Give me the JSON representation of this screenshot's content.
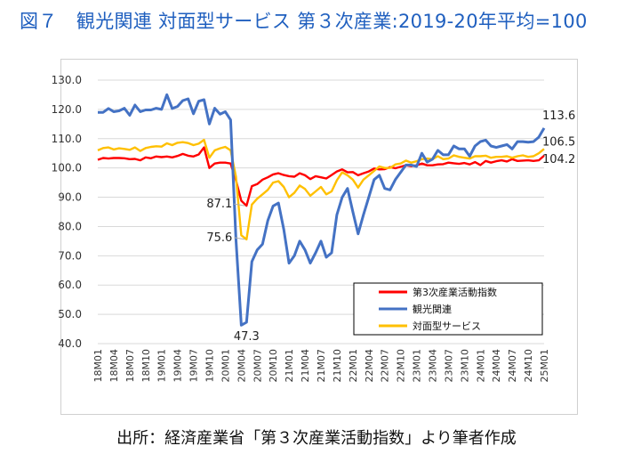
{
  "title": "図７　観光関連 対面型サービス 第３次産業:2019-20年平均=100",
  "source": "出所：経済産業省「第３次産業活動指数」より筆者作成",
  "chart_data": {
    "type": "line",
    "ylim": [
      40,
      130
    ],
    "yticks": [
      "130.0",
      "120.0",
      "110.0",
      "100.0",
      "90.0",
      "80.0",
      "70.0",
      "60.0",
      "50.0",
      "40.0"
    ],
    "ytick_values": [
      130,
      120,
      110,
      100,
      90,
      80,
      70,
      60,
      50,
      40
    ],
    "xtick_labels": [
      "18M01",
      "18M04",
      "18M07",
      "18M10",
      "19M01",
      "19M04",
      "19M07",
      "19M10",
      "20M01",
      "20M04",
      "20M07",
      "20M10",
      "21M01",
      "21M04",
      "21M07",
      "21M10",
      "22M01",
      "22M04",
      "22M07",
      "22M10",
      "23M01",
      "23M04",
      "23M07",
      "23M10",
      "24M01",
      "24M04",
      "24M07",
      "24M10",
      "25M01"
    ],
    "grid": true,
    "legend_position": "lower-right",
    "series": [
      {
        "name": "第3次産業活動指数",
        "color": "#ff0000",
        "values": [
          102.8,
          103.4,
          103.2,
          103.4,
          103.4,
          103.3,
          103.0,
          103.1,
          102.6,
          103.6,
          103.3,
          103.9,
          103.7,
          103.9,
          103.6,
          104.1,
          104.8,
          104.2,
          103.9,
          104.6,
          107.0,
          100.0,
          101.5,
          101.8,
          101.8,
          101.5,
          95.8,
          88.8,
          87.1,
          93.8,
          94.5,
          96.0,
          96.8,
          97.8,
          98.2,
          97.6,
          97.2,
          97.0,
          98.2,
          97.5,
          96.2,
          97.2,
          96.8,
          96.4,
          97.6,
          98.8,
          99.5,
          98.5,
          98.6,
          97.5,
          98.2,
          98.8,
          99.8,
          99.5,
          99.6,
          100.3,
          99.9,
          100.4,
          100.9,
          100.6,
          100.9,
          101.5,
          100.9,
          100.9,
          101.2,
          101.3,
          101.8,
          101.6,
          101.4,
          101.7,
          101.2,
          102.0,
          101.0,
          102.4,
          101.8,
          102.3,
          102.6,
          102.2,
          103.0,
          102.4,
          102.5,
          102.6,
          102.4,
          102.6,
          104.2
        ]
      },
      {
        "name": "観光関連",
        "color": "#4472c4",
        "values": [
          119.0,
          119.0,
          120.3,
          119.2,
          119.5,
          120.4,
          118.0,
          121.5,
          119.2,
          119.8,
          119.8,
          120.4,
          120.0,
          125.0,
          120.3,
          121.0,
          123.0,
          123.6,
          118.5,
          122.8,
          123.3,
          115.0,
          120.4,
          118.4,
          119.2,
          116.4,
          75.6,
          46.3,
          47.3,
          68.0,
          72.0,
          74.0,
          82.0,
          87.0,
          88.0,
          79.0,
          67.5,
          70.0,
          75.0,
          72.0,
          67.5,
          71.0,
          75.0,
          69.5,
          71.0,
          84.0,
          90.0,
          93.0,
          85.0,
          77.5,
          84.0,
          90.0,
          96.0,
          97.5,
          93.0,
          92.5,
          96.0,
          98.5,
          101.0,
          101.0,
          100.5,
          105.0,
          102.0,
          103.0,
          106.0,
          104.5,
          104.5,
          107.5,
          106.5,
          106.5,
          104.0,
          107.5,
          109.0,
          109.5,
          107.5,
          107.0,
          107.5,
          108.0,
          106.5,
          109.0,
          109.0,
          108.8,
          109.0,
          110.5,
          113.6
        ]
      },
      {
        "name": "対面型サービス",
        "color": "#ffc000",
        "values": [
          106.0,
          106.8,
          107.0,
          106.3,
          106.7,
          106.5,
          106.2,
          107.0,
          105.8,
          106.8,
          107.2,
          107.4,
          107.3,
          108.4,
          107.8,
          108.6,
          108.8,
          108.5,
          107.8,
          108.3,
          109.6,
          103.5,
          106.0,
          106.7,
          107.2,
          106.0,
          97.0,
          77.0,
          75.6,
          87.5,
          89.5,
          91.0,
          92.5,
          95.0,
          95.5,
          93.5,
          90.0,
          91.5,
          94.0,
          92.8,
          90.5,
          92.0,
          93.5,
          91.0,
          92.0,
          95.8,
          98.5,
          97.5,
          96.0,
          93.3,
          96.0,
          97.5,
          99.0,
          100.5,
          100.0,
          100.0,
          101.2,
          101.5,
          102.5,
          101.8,
          102.3,
          103.0,
          103.2,
          103.0,
          104.0,
          103.0,
          103.2,
          104.3,
          103.8,
          103.5,
          103.2,
          104.0,
          104.0,
          104.2,
          103.5,
          103.8,
          103.8,
          104.0,
          103.5,
          104.0,
          104.3,
          103.8,
          104.0,
          105.0,
          106.5
        ]
      }
    ],
    "annotations": [
      {
        "text": "113.6",
        "series": 1,
        "index": 84
      },
      {
        "text": "106.5",
        "series": 2,
        "index": 84
      },
      {
        "text": "104.2",
        "series": 0,
        "index": 84
      },
      {
        "text": "87.1",
        "series": 0,
        "index": 28
      },
      {
        "text": "75.6",
        "series": 2,
        "index": 28
      },
      {
        "text": "47.3",
        "series": 1,
        "index": 28
      }
    ]
  }
}
